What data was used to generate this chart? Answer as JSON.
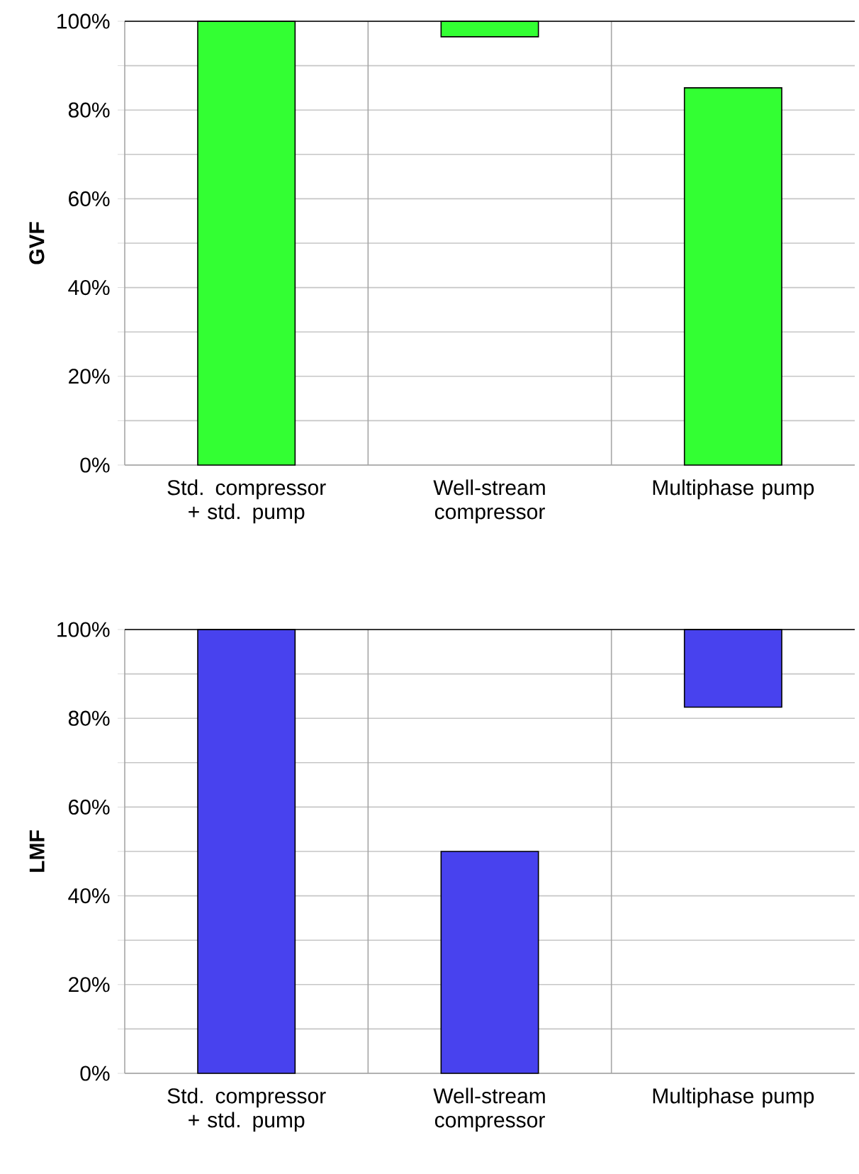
{
  "chart_data": [
    {
      "type": "bar",
      "categories": [
        "Std. compressor + std. pump",
        "Well-stream compressor",
        "Multiphase pump"
      ],
      "values": [
        100,
        3.5,
        85
      ],
      "base": [
        0,
        96.5,
        0
      ],
      "color": "#33ff33",
      "ylabel": "GVF",
      "ylim": [
        0,
        100
      ],
      "yticks": [
        {
          "value": 0,
          "label": "0%"
        },
        {
          "value": 10,
          "label": null
        },
        {
          "value": 20,
          "label": "20%"
        },
        {
          "value": 30,
          "label": null
        },
        {
          "value": 40,
          "label": "40%"
        },
        {
          "value": 50,
          "label": null
        },
        {
          "value": 60,
          "label": "60%"
        },
        {
          "value": 70,
          "label": null
        },
        {
          "value": 80,
          "label": "80%"
        },
        {
          "value": 90,
          "label": null
        },
        {
          "value": 100,
          "label": "100%"
        }
      ],
      "grid": true
    },
    {
      "type": "bar",
      "categories": [
        "Std. compressor + std. pump",
        "Well-stream compressor",
        "Multiphase pump"
      ],
      "values": [
        100,
        50,
        17.5
      ],
      "base": [
        0,
        0,
        82.5
      ],
      "color": "#4842ee",
      "ylabel": "LMF",
      "ylim": [
        0,
        100
      ],
      "yticks": [
        {
          "value": 0,
          "label": "0%"
        },
        {
          "value": 10,
          "label": null
        },
        {
          "value": 20,
          "label": "20%"
        },
        {
          "value": 30,
          "label": null
        },
        {
          "value": 40,
          "label": "40%"
        },
        {
          "value": 50,
          "label": null
        },
        {
          "value": 60,
          "label": "60%"
        },
        {
          "value": 70,
          "label": null
        },
        {
          "value": 80,
          "label": "80%"
        },
        {
          "value": 90,
          "label": null
        },
        {
          "value": 100,
          "label": "100%"
        }
      ],
      "grid": true
    }
  ]
}
